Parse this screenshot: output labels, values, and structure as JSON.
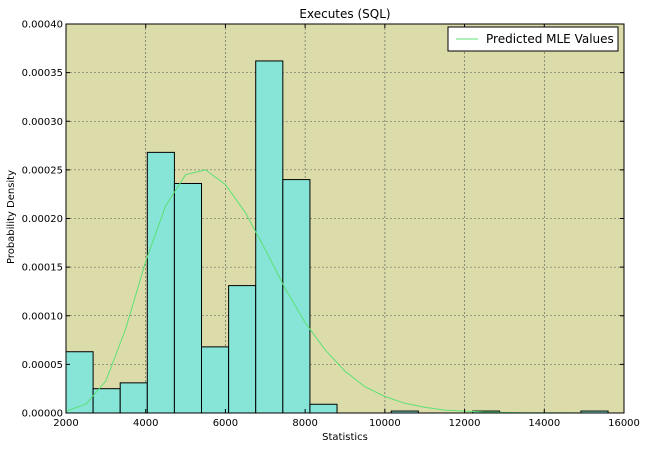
{
  "chart_data": {
    "type": "bar",
    "title": "Executes (SQL)",
    "xlabel": "Statistics",
    "ylabel": "Probability Density",
    "xlim": [
      2000,
      16000
    ],
    "ylim": [
      0,
      0.0004
    ],
    "x_ticks": [
      "2000",
      "4000",
      "6000",
      "8000",
      "10000",
      "12000",
      "14000",
      "16000"
    ],
    "y_ticks": [
      "0.00000",
      "0.00005",
      "0.00010",
      "0.00015",
      "0.00020",
      "0.00025",
      "0.00030",
      "0.00035",
      "0.00040"
    ],
    "grid": true,
    "legend_position": "top-right",
    "histogram": {
      "bin_start": 2000,
      "bin_width": 680,
      "values": [
        6.3e-05,
        2.5e-05,
        3.1e-05,
        0.000268,
        0.000236,
        6.8e-05,
        0.000131,
        0.000362,
        0.00024,
        9e-06,
        0,
        0,
        2e-06,
        0,
        0,
        2e-06,
        0,
        0,
        0,
        2e-06
      ],
      "fill_color": "#87e5d8",
      "edge_color": "#000000"
    },
    "series": [
      {
        "name": "Predicted MLE Values",
        "type": "line",
        "color": "#5de075",
        "x": [
          2000,
          2500,
          3000,
          3500,
          4000,
          4500,
          5000,
          5500,
          6000,
          6500,
          7000,
          7500,
          8000,
          8500,
          9000,
          9500,
          10000,
          10500,
          11000,
          11500,
          12000,
          12500,
          13000,
          13500,
          14000,
          14500,
          15000,
          15500,
          16000
        ],
        "y": [
          2e-06,
          9e-06,
          3.3e-05,
          8.7e-05,
          0.000156,
          0.000213,
          0.000245,
          0.00025,
          0.000235,
          0.000206,
          0.000168,
          0.000128,
          9.3e-05,
          6.5e-05,
          4.3e-05,
          2.7e-05,
          1.7e-05,
          1e-05,
          6e-06,
          3e-06,
          2e-06,
          1e-06,
          5e-07,
          3e-07,
          2e-07,
          1e-07,
          1e-07,
          0,
          0
        ]
      }
    ]
  },
  "colors": {
    "plot_background": "#dcdcaa",
    "grid": "#555555"
  }
}
